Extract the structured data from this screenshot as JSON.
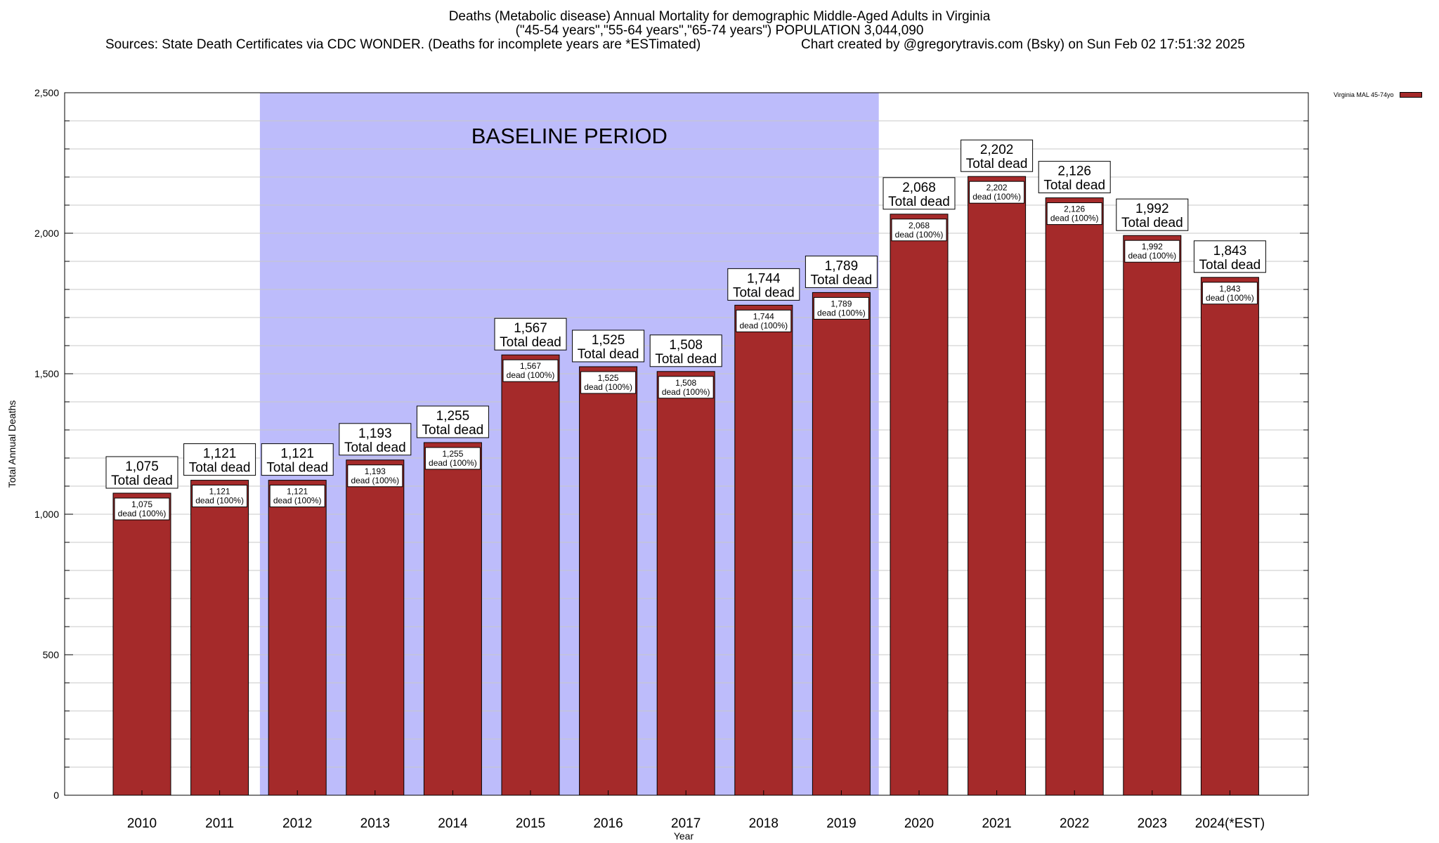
{
  "title": {
    "line1": "Deaths (Metabolic disease) Annual Mortality for demographic Middle-Aged Adults in Virginia",
    "line2": "(\"45-54 years\",\"55-64 years\",\"65-74 years\") POPULATION 3,044,090",
    "sources": "Sources: State Death Certificates via CDC WONDER. (Deaths for incomplete years are *ESTimated)",
    "credit": "Chart created by @gregorytravis.com (Bsky) on Sun Feb 02 17:51:32 2025"
  },
  "legend": {
    "label": "Virginia MAL 45-74yo"
  },
  "colors": {
    "bar": "#a52a2a",
    "baseline": "#bdbcfb",
    "grid": "#c8c8c8"
  },
  "chart_data": {
    "type": "bar",
    "xlabel": "Year",
    "ylabel": "Total Annual Deaths",
    "ylim": [
      0,
      2500
    ],
    "yticks": [
      0,
      500,
      1000,
      1500,
      2000,
      2500
    ],
    "ytick_labels": [
      "0",
      "500",
      "1,000",
      "1,500",
      "2,000",
      "2,500"
    ],
    "grid": true,
    "legend_position": "top-right",
    "categories": [
      "2010",
      "2011",
      "2012",
      "2013",
      "2014",
      "2015",
      "2016",
      "2017",
      "2018",
      "2019",
      "2020",
      "2021",
      "2022",
      "2023",
      "2024(*EST)"
    ],
    "series": [
      {
        "name": "Virginia MAL 45-74yo",
        "values": [
          1075,
          1121,
          1121,
          1193,
          1255,
          1567,
          1525,
          1508,
          1744,
          1789,
          2068,
          2202,
          2126,
          1992,
          1843
        ]
      }
    ],
    "value_labels": [
      "1,075",
      "1,121",
      "1,121",
      "1,193",
      "1,255",
      "1,567",
      "1,525",
      "1,508",
      "1,744",
      "1,789",
      "2,068",
      "2,202",
      "2,126",
      "1,992",
      "1,843"
    ],
    "total_label_suffix": "Total dead",
    "inner_label_suffix": "dead (100%)",
    "baseline_region": {
      "label": "BASELINE PERIOD",
      "from": "2012",
      "to": "2019"
    }
  }
}
